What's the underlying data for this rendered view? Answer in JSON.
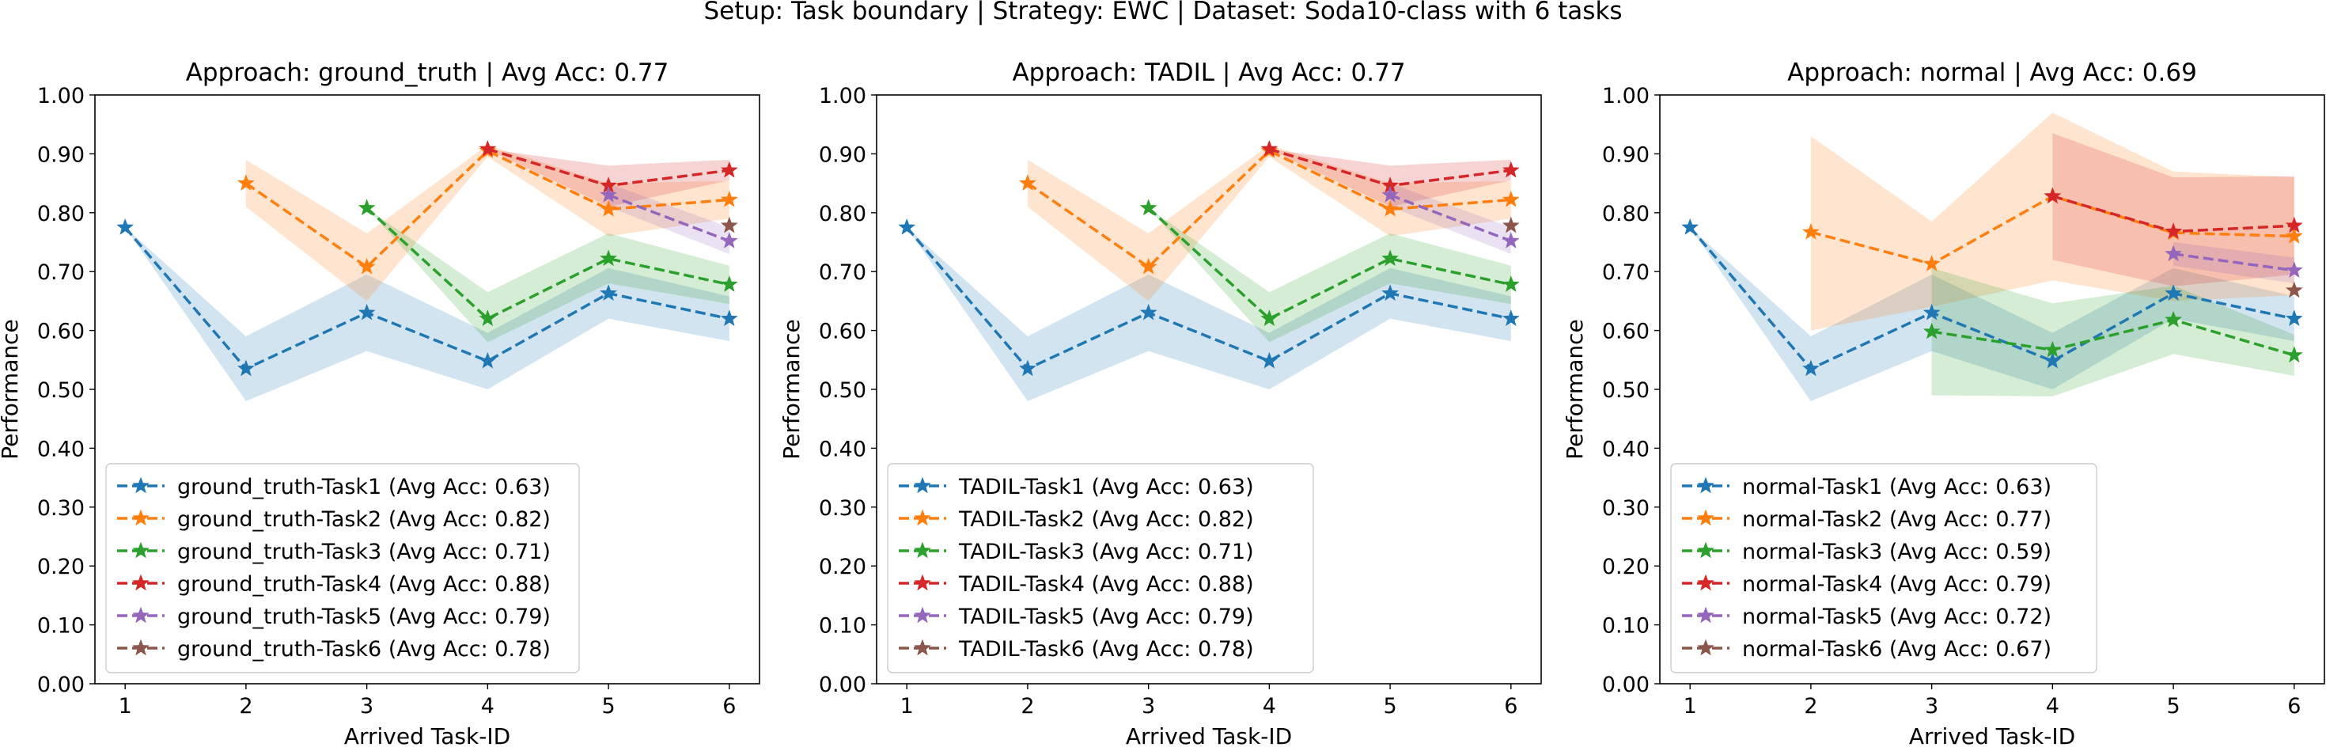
{
  "suptitle": "Setup: Task boundary | Strategy: EWC | Dataset: Soda10-class with 6 tasks",
  "chart_data": [
    {
      "type": "line",
      "title": "Approach: ground_truth | Avg Acc: 0.77",
      "xlabel": "Arrived Task-ID",
      "ylabel": "Performance",
      "x_ticks": [
        1,
        2,
        3,
        4,
        5,
        6
      ],
      "y_ticks": [
        "0.00",
        "0.10",
        "0.20",
        "0.30",
        "0.40",
        "0.50",
        "0.60",
        "0.70",
        "0.80",
        "0.90",
        "1.00"
      ],
      "ylim": [
        0,
        1
      ],
      "legend_position": "lower-left",
      "series": [
        {
          "name": "ground_truth-Task1 (Avg Acc: 0.63)",
          "color": "#1f77b4",
          "x": [
            1,
            2,
            3,
            4,
            5,
            6
          ],
          "y": [
            0.775,
            0.535,
            0.63,
            0.548,
            0.663,
            0.62
          ],
          "lower": [
            0.775,
            0.48,
            0.565,
            0.5,
            0.62,
            0.582
          ],
          "upper": [
            0.775,
            0.59,
            0.695,
            0.596,
            0.706,
            0.658
          ]
        },
        {
          "name": "ground_truth-Task2 (Avg Acc: 0.82)",
          "color": "#ff7f0e",
          "x": [
            2,
            3,
            4,
            5,
            6
          ],
          "y": [
            0.85,
            0.708,
            0.905,
            0.806,
            0.822
          ],
          "lower": [
            0.81,
            0.65,
            0.895,
            0.76,
            0.79
          ],
          "upper": [
            0.89,
            0.765,
            0.915,
            0.85,
            0.854
          ]
        },
        {
          "name": "ground_truth-Task3 (Avg Acc: 0.71)",
          "color": "#2ca02c",
          "x": [
            3,
            4,
            5,
            6
          ],
          "y": [
            0.808,
            0.62,
            0.722,
            0.678
          ],
          "lower": [
            0.808,
            0.58,
            0.68,
            0.645
          ],
          "upper": [
            0.808,
            0.665,
            0.765,
            0.71
          ]
        },
        {
          "name": "ground_truth-Task4 (Avg Acc: 0.88)",
          "color": "#d62728",
          "x": [
            4,
            5,
            6
          ],
          "y": [
            0.908,
            0.846,
            0.872
          ],
          "lower": [
            0.908,
            0.81,
            0.855
          ],
          "upper": [
            0.908,
            0.88,
            0.89
          ]
        },
        {
          "name": "ground_truth-Task5 (Avg Acc: 0.79)",
          "color": "#9467bd",
          "x": [
            5,
            6
          ],
          "y": [
            0.83,
            0.752
          ],
          "lower": [
            0.81,
            0.73
          ],
          "upper": [
            0.85,
            0.775
          ]
        },
        {
          "name": "ground_truth-Task6 (Avg Acc: 0.78)",
          "color": "#8c564b",
          "x": [
            6
          ],
          "y": [
            0.778
          ]
        }
      ]
    },
    {
      "type": "line",
      "title": "Approach: TADIL | Avg Acc: 0.77",
      "xlabel": "Arrived Task-ID",
      "ylabel": "Performance",
      "x_ticks": [
        1,
        2,
        3,
        4,
        5,
        6
      ],
      "y_ticks": [
        "0.00",
        "0.10",
        "0.20",
        "0.30",
        "0.40",
        "0.50",
        "0.60",
        "0.70",
        "0.80",
        "0.90",
        "1.00"
      ],
      "ylim": [
        0,
        1
      ],
      "legend_position": "lower-left",
      "series": [
        {
          "name": "TADIL-Task1 (Avg Acc: 0.63)",
          "color": "#1f77b4",
          "x": [
            1,
            2,
            3,
            4,
            5,
            6
          ],
          "y": [
            0.775,
            0.535,
            0.63,
            0.548,
            0.663,
            0.62
          ],
          "lower": [
            0.775,
            0.48,
            0.565,
            0.5,
            0.62,
            0.582
          ],
          "upper": [
            0.775,
            0.59,
            0.695,
            0.596,
            0.706,
            0.658
          ]
        },
        {
          "name": "TADIL-Task2 (Avg Acc: 0.82)",
          "color": "#ff7f0e",
          "x": [
            2,
            3,
            4,
            5,
            6
          ],
          "y": [
            0.85,
            0.708,
            0.905,
            0.806,
            0.822
          ],
          "lower": [
            0.81,
            0.65,
            0.895,
            0.76,
            0.79
          ],
          "upper": [
            0.89,
            0.765,
            0.915,
            0.85,
            0.854
          ]
        },
        {
          "name": "TADIL-Task3 (Avg Acc: 0.71)",
          "color": "#2ca02c",
          "x": [
            3,
            4,
            5,
            6
          ],
          "y": [
            0.808,
            0.62,
            0.722,
            0.678
          ],
          "lower": [
            0.808,
            0.58,
            0.68,
            0.645
          ],
          "upper": [
            0.808,
            0.665,
            0.765,
            0.71
          ]
        },
        {
          "name": "TADIL-Task4 (Avg Acc: 0.88)",
          "color": "#d62728",
          "x": [
            4,
            5,
            6
          ],
          "y": [
            0.908,
            0.846,
            0.872
          ],
          "lower": [
            0.908,
            0.81,
            0.855
          ],
          "upper": [
            0.908,
            0.88,
            0.89
          ]
        },
        {
          "name": "TADIL-Task5 (Avg Acc: 0.79)",
          "color": "#9467bd",
          "x": [
            5,
            6
          ],
          "y": [
            0.83,
            0.752
          ],
          "lower": [
            0.81,
            0.73
          ],
          "upper": [
            0.85,
            0.775
          ]
        },
        {
          "name": "TADIL-Task6 (Avg Acc: 0.78)",
          "color": "#8c564b",
          "x": [
            6
          ],
          "y": [
            0.778
          ]
        }
      ]
    },
    {
      "type": "line",
      "title": "Approach: normal | Avg Acc: 0.69",
      "xlabel": "Arrived Task-ID",
      "ylabel": "Performance",
      "x_ticks": [
        1,
        2,
        3,
        4,
        5,
        6
      ],
      "y_ticks": [
        "0.00",
        "0.10",
        "0.20",
        "0.30",
        "0.40",
        "0.50",
        "0.60",
        "0.70",
        "0.80",
        "0.90",
        "1.00"
      ],
      "ylim": [
        0,
        1
      ],
      "legend_position": "lower-left",
      "series": [
        {
          "name": "normal-Task1 (Avg Acc: 0.63)",
          "color": "#1f77b4",
          "x": [
            1,
            2,
            3,
            4,
            5,
            6
          ],
          "y": [
            0.775,
            0.535,
            0.63,
            0.548,
            0.663,
            0.62
          ],
          "lower": [
            0.775,
            0.48,
            0.565,
            0.5,
            0.62,
            0.582
          ],
          "upper": [
            0.775,
            0.59,
            0.695,
            0.596,
            0.706,
            0.658
          ]
        },
        {
          "name": "normal-Task2 (Avg Acc: 0.77)",
          "color": "#ff7f0e",
          "x": [
            2,
            3,
            4,
            5,
            6
          ],
          "y": [
            0.767,
            0.713,
            0.828,
            0.766,
            0.76
          ],
          "lower": [
            0.6,
            0.64,
            0.685,
            0.65,
            0.66
          ],
          "upper": [
            0.93,
            0.785,
            0.97,
            0.87,
            0.86
          ]
        },
        {
          "name": "normal-Task3 (Avg Acc: 0.59)",
          "color": "#2ca02c",
          "x": [
            3,
            4,
            5,
            6
          ],
          "y": [
            0.598,
            0.567,
            0.618,
            0.558
          ],
          "lower": [
            0.49,
            0.488,
            0.56,
            0.523
          ],
          "upper": [
            0.706,
            0.646,
            0.676,
            0.593
          ]
        },
        {
          "name": "normal-Task4 (Avg Acc: 0.79)",
          "color": "#d62728",
          "x": [
            4,
            5,
            6
          ],
          "y": [
            0.828,
            0.768,
            0.778
          ],
          "lower": [
            0.72,
            0.675,
            0.695
          ],
          "upper": [
            0.935,
            0.86,
            0.862
          ]
        },
        {
          "name": "normal-Task5 (Avg Acc: 0.72)",
          "color": "#9467bd",
          "x": [
            5,
            6
          ],
          "y": [
            0.73,
            0.702
          ],
          "lower": [
            0.71,
            0.68
          ],
          "upper": [
            0.75,
            0.724
          ]
        },
        {
          "name": "normal-Task6 (Avg Acc: 0.67)",
          "color": "#8c564b",
          "x": [
            6
          ],
          "y": [
            0.668
          ]
        }
      ]
    }
  ]
}
